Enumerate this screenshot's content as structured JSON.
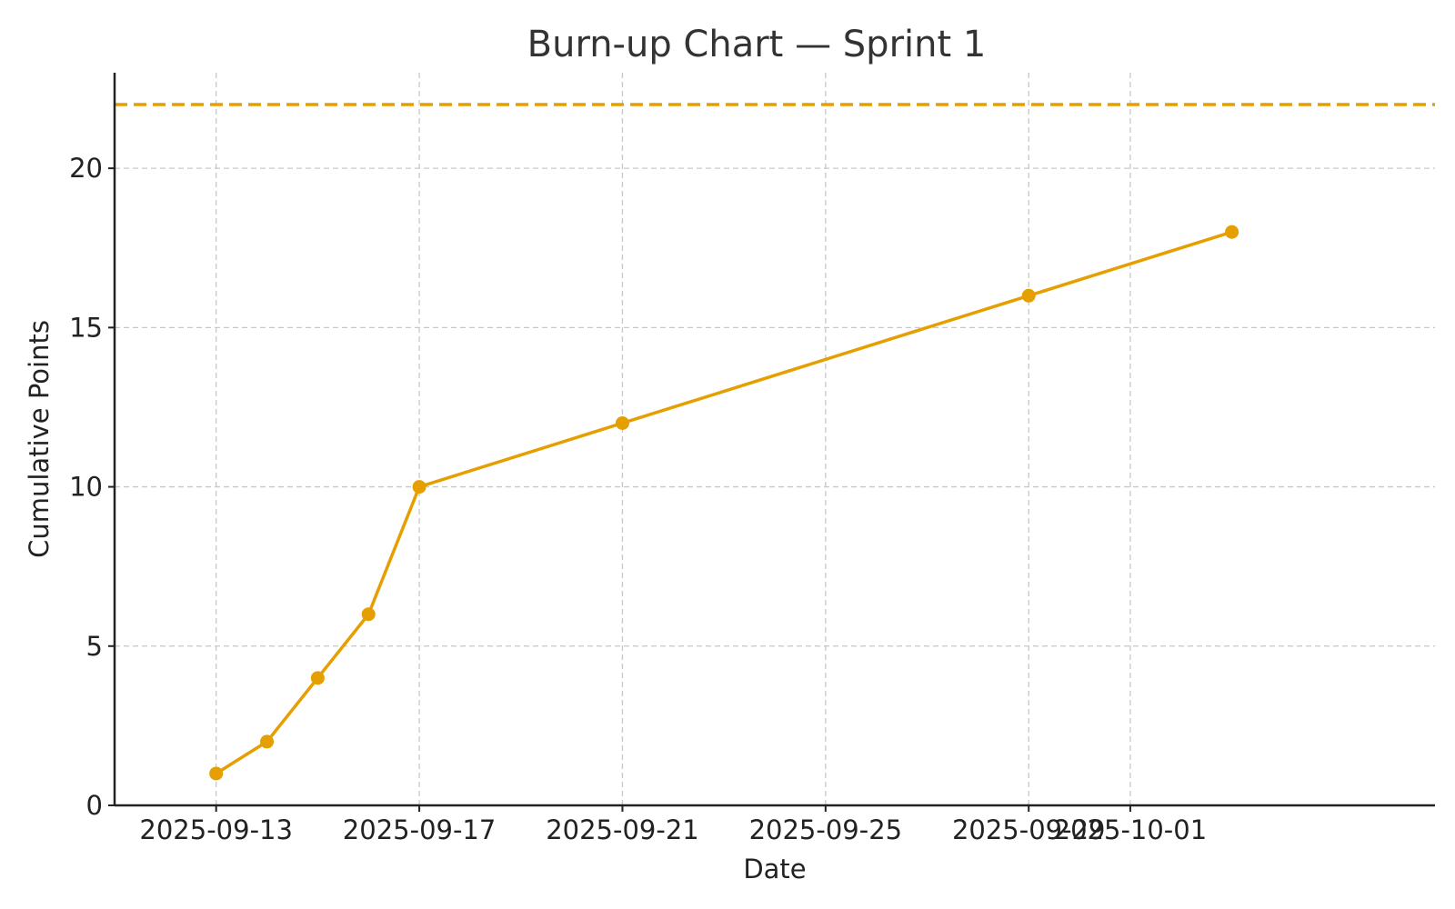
{
  "chart_data": {
    "type": "line",
    "title": "Burn-up Chart — Sprint 1",
    "xlabel": "Date",
    "ylabel": "Cumulative Points",
    "x_scale": "date",
    "xlim": [
      "2025-09-11",
      "2025-10-07"
    ],
    "ylim": [
      0,
      23
    ],
    "xticks": [
      "2025-09-13",
      "2025-09-17",
      "2025-09-21",
      "2025-09-25",
      "2025-09-29",
      "2025-10-01"
    ],
    "yticks": [
      0,
      5,
      10,
      15,
      20
    ],
    "grid": true,
    "series": [
      {
        "color": "#E69F00",
        "marker": "circle",
        "points": [
          {
            "x": "2025-09-13",
            "y": 1
          },
          {
            "x": "2025-09-14",
            "y": 2
          },
          {
            "x": "2025-09-15",
            "y": 4
          },
          {
            "x": "2025-09-16",
            "y": 6
          },
          {
            "x": "2025-09-17",
            "y": 10
          },
          {
            "x": "2025-09-21",
            "y": 12
          },
          {
            "x": "2025-09-29",
            "y": 16
          },
          {
            "x": "2025-10-03",
            "y": 18
          }
        ]
      }
    ],
    "reference_lines": [
      {
        "y": 22,
        "style": "dashed",
        "color": "#E69F00"
      }
    ]
  }
}
